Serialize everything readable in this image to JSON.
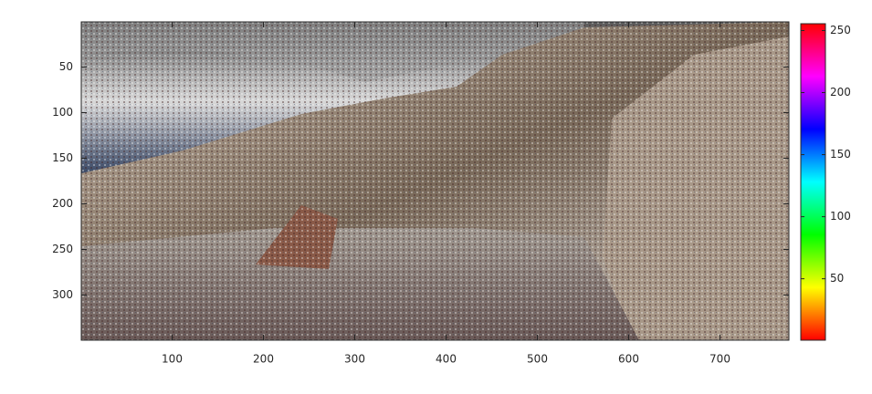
{
  "chart_data": {
    "type": "image",
    "xlim": [
      0.5,
      775.5
    ],
    "ylim": [
      0.5,
      349.5
    ],
    "y_reversed": true,
    "xticks": [
      100,
      200,
      300,
      400,
      500,
      600,
      700
    ],
    "yticks": [
      50,
      100,
      150,
      200,
      250,
      300
    ],
    "colorbar": {
      "clim": [
        0.5,
        255.5
      ],
      "ticks": [
        50,
        100,
        150,
        200,
        250
      ],
      "colormap": [
        "#ff0000",
        "#ffff00",
        "#00ff00",
        "#00ffff",
        "#0000ff",
        "#ff00ff",
        "#ff0000"
      ]
    }
  }
}
